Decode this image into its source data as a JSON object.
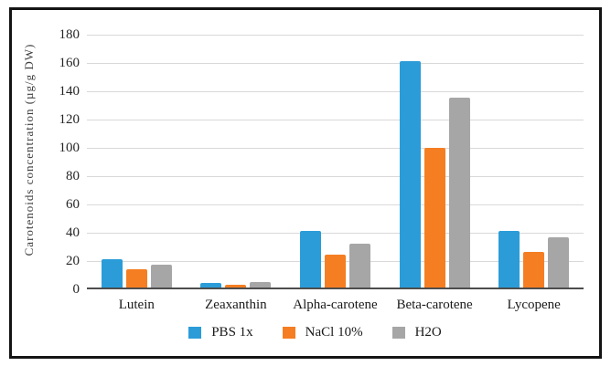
{
  "chart_data": {
    "type": "bar",
    "title": "",
    "xlabel": "",
    "ylabel": "Carotenoids concentration (µg/g DW)",
    "categories": [
      "Lutein",
      "Zeaxanthin",
      "Alpha-carotene",
      "Beta-carotene",
      "Lycopene"
    ],
    "series": [
      {
        "name": "PBS 1x",
        "color": "#2b9cd8",
        "values": [
          21,
          4.5,
          41,
          161,
          41.5
        ]
      },
      {
        "name": "NaCl 10%",
        "color": "#f57e22",
        "values": [
          14,
          3.5,
          24.5,
          100,
          26.5
        ]
      },
      {
        "name": "H2O",
        "color": "#a6a6a6",
        "values": [
          17.5,
          5,
          32,
          135.5,
          36.5
        ]
      }
    ],
    "ylim": [
      0,
      180
    ],
    "ytick_step": 20,
    "grid": true,
    "legend_position": "bottom"
  },
  "style_colors": {
    "gridline": "#d9d9d9",
    "axis_line": "#4d4d4d",
    "outer_border": "#141414",
    "text": "#262626"
  }
}
